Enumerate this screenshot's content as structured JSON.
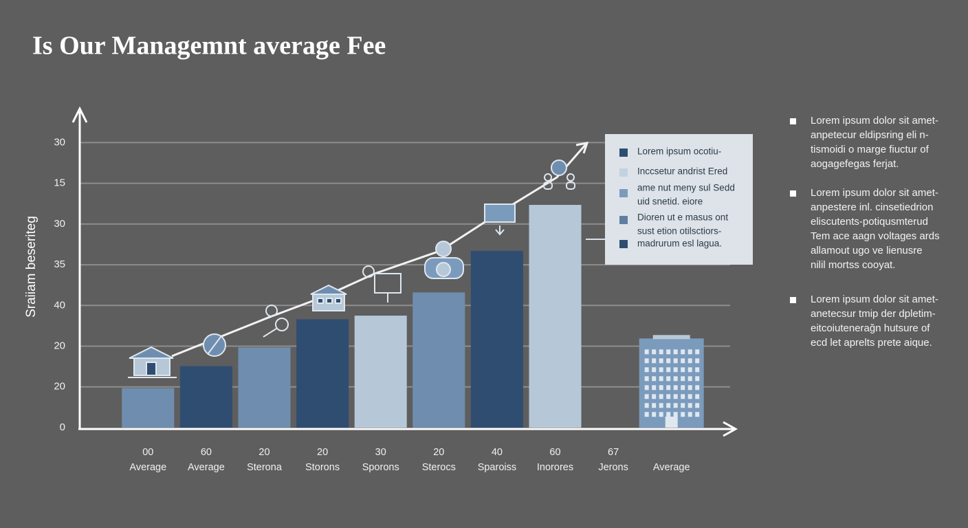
{
  "title": "Is Our  Managemnt average Fee",
  "chart_data": {
    "type": "bar",
    "y_label": "Sraiiam beseriteg",
    "categories": [
      "Average",
      "Average",
      "Sterona",
      "Storons",
      "Sporons",
      "Sterocs",
      "Sparoiss",
      "Inorores",
      "Jerons",
      "Average"
    ],
    "category_numbers": [
      "00",
      "60",
      "20",
      "20",
      "30",
      "20",
      "40",
      "60",
      "67",
      ""
    ],
    "values": [
      0.97,
      1.51,
      1.97,
      2.66,
      2.75,
      3.32,
      4.34,
      5.47,
      null,
      2.19
    ],
    "colors": [
      "#6f8eaf",
      "#2f4d71",
      "#6f8eaf",
      "#2f4d71",
      "#b6c8d7",
      "#6f8eaf",
      "#2f4d71",
      "#b6c8d7",
      null,
      "#7b9bbd"
    ],
    "ylim": [
      0,
      7.8
    ],
    "yticks": [
      {
        "value": 0,
        "label": "0"
      },
      {
        "value": 1,
        "label": "20"
      },
      {
        "value": 2,
        "label": "20"
      },
      {
        "value": 3,
        "label": "40"
      },
      {
        "value": 4,
        "label": "35"
      },
      {
        "value": 5,
        "label": "30"
      },
      {
        "value": 6,
        "label": "15"
      },
      {
        "value": 7,
        "label": "30"
      }
    ],
    "grid": true
  },
  "legend": [
    {
      "color": "#2f4d71",
      "text": [
        "Lorem ipsum ocotiu-"
      ]
    },
    {
      "color": "#c3d2df",
      "text": [
        "Inccsetur andrist Ered"
      ]
    },
    {
      "color": "#7b9bbd",
      "text": [
        "ame nut meny sul Sedd",
        "uid snetid. eiore"
      ]
    },
    {
      "color": "#5f7fa2",
      "text": [
        "Dioren ut e masus ont",
        "sust etion otilsctiors-"
      ]
    },
    {
      "color": "#2f4d71",
      "text": [
        "madrurum esl lagua."
      ]
    }
  ],
  "notes": [
    [
      "Lorem ipsum dolor sit amet-",
      "anpetecur eldipsring eli n-",
      "tismoidi o marge fiuctur of",
      "aogagefegas ferjat."
    ],
    [
      "Lorem ipsum dolor sit amet-",
      "anpestere inl. cinsetiedrion",
      "eliscutents-potiqusmterud",
      "Tem ace aagn voltages ards",
      "allamout ugo ve lienusre",
      "nilil mortss cooyat."
    ],
    [
      "Lorem ipsum dolor sit amet-",
      "anetecsur tmip der dpletim-",
      "eitcoiutenerağn hutsure of",
      "ecd let aprelts  prete aique."
    ]
  ]
}
